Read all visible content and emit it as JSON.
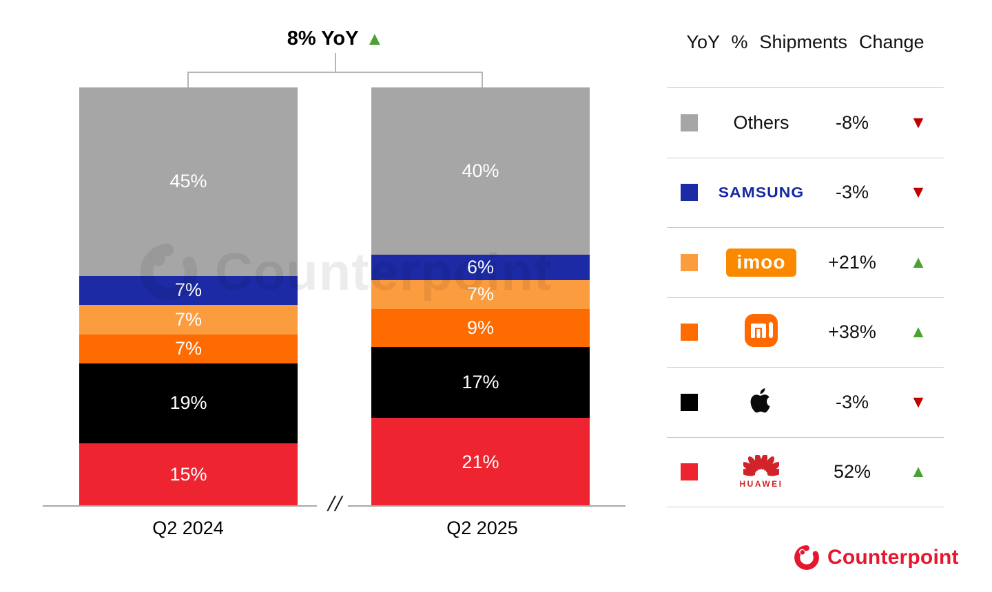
{
  "header": {
    "total_change_label": "8% YoY",
    "total_change_direction": "up"
  },
  "chart_data": {
    "type": "bar",
    "subtype": "100%-stacked-column",
    "title": "8% YoY",
    "unit": "%",
    "categories": [
      "Q2 2024",
      "Q2 2025"
    ],
    "series": [
      {
        "name": "Others",
        "color": "#a6a6a6",
        "values": [
          45,
          40
        ]
      },
      {
        "name": "Samsung",
        "color": "#1c2ba5",
        "values": [
          7,
          6
        ]
      },
      {
        "name": "imoo",
        "color": "#fb9c3f",
        "values": [
          7,
          7
        ]
      },
      {
        "name": "Xiaomi",
        "color": "#fe6c01",
        "values": [
          7,
          9
        ]
      },
      {
        "name": "Apple",
        "color": "#000000",
        "values": [
          19,
          17
        ]
      },
      {
        "name": "Huawei",
        "color": "#ee2430",
        "values": [
          15,
          21
        ]
      }
    ],
    "series_order": "top-to-bottom",
    "axis_break_symbol": "//",
    "ylim": [
      0,
      100
    ],
    "grid": false,
    "legend_position": "right"
  },
  "legend": {
    "title": "YoY % Shipments Change",
    "rows": [
      {
        "brand": "Others",
        "swatch": "#a6a6a6",
        "change": "-8%",
        "direction": "down"
      },
      {
        "brand": "Samsung",
        "swatch": "#1c2ba5",
        "change": "-3%",
        "direction": "down"
      },
      {
        "brand": "imoo",
        "swatch": "#fb9c3f",
        "change": "+21%",
        "direction": "up"
      },
      {
        "brand": "Xiaomi",
        "swatch": "#fe6c01",
        "change": "+38%",
        "direction": "up"
      },
      {
        "brand": "Apple",
        "swatch": "#000000",
        "change": "-3%",
        "direction": "down"
      },
      {
        "brand": "Huawei",
        "swatch": "#ee2430",
        "change": "52%",
        "direction": "up"
      }
    ]
  },
  "watermark": "Counterpoint",
  "footer": {
    "brand": "Counterpoint"
  },
  "colors": {
    "up": "#4ca231",
    "down": "#c00000",
    "axis": "#a8a8a8",
    "divider": "#c9c9c9",
    "bracket": "#b5b5b5",
    "brand_red": "#e5172f",
    "samsung_blue": "#1428a0",
    "imoo_orange": "#fb8900",
    "xiaomi_orange": "#ff6900",
    "huawei_red": "#d2232a"
  }
}
